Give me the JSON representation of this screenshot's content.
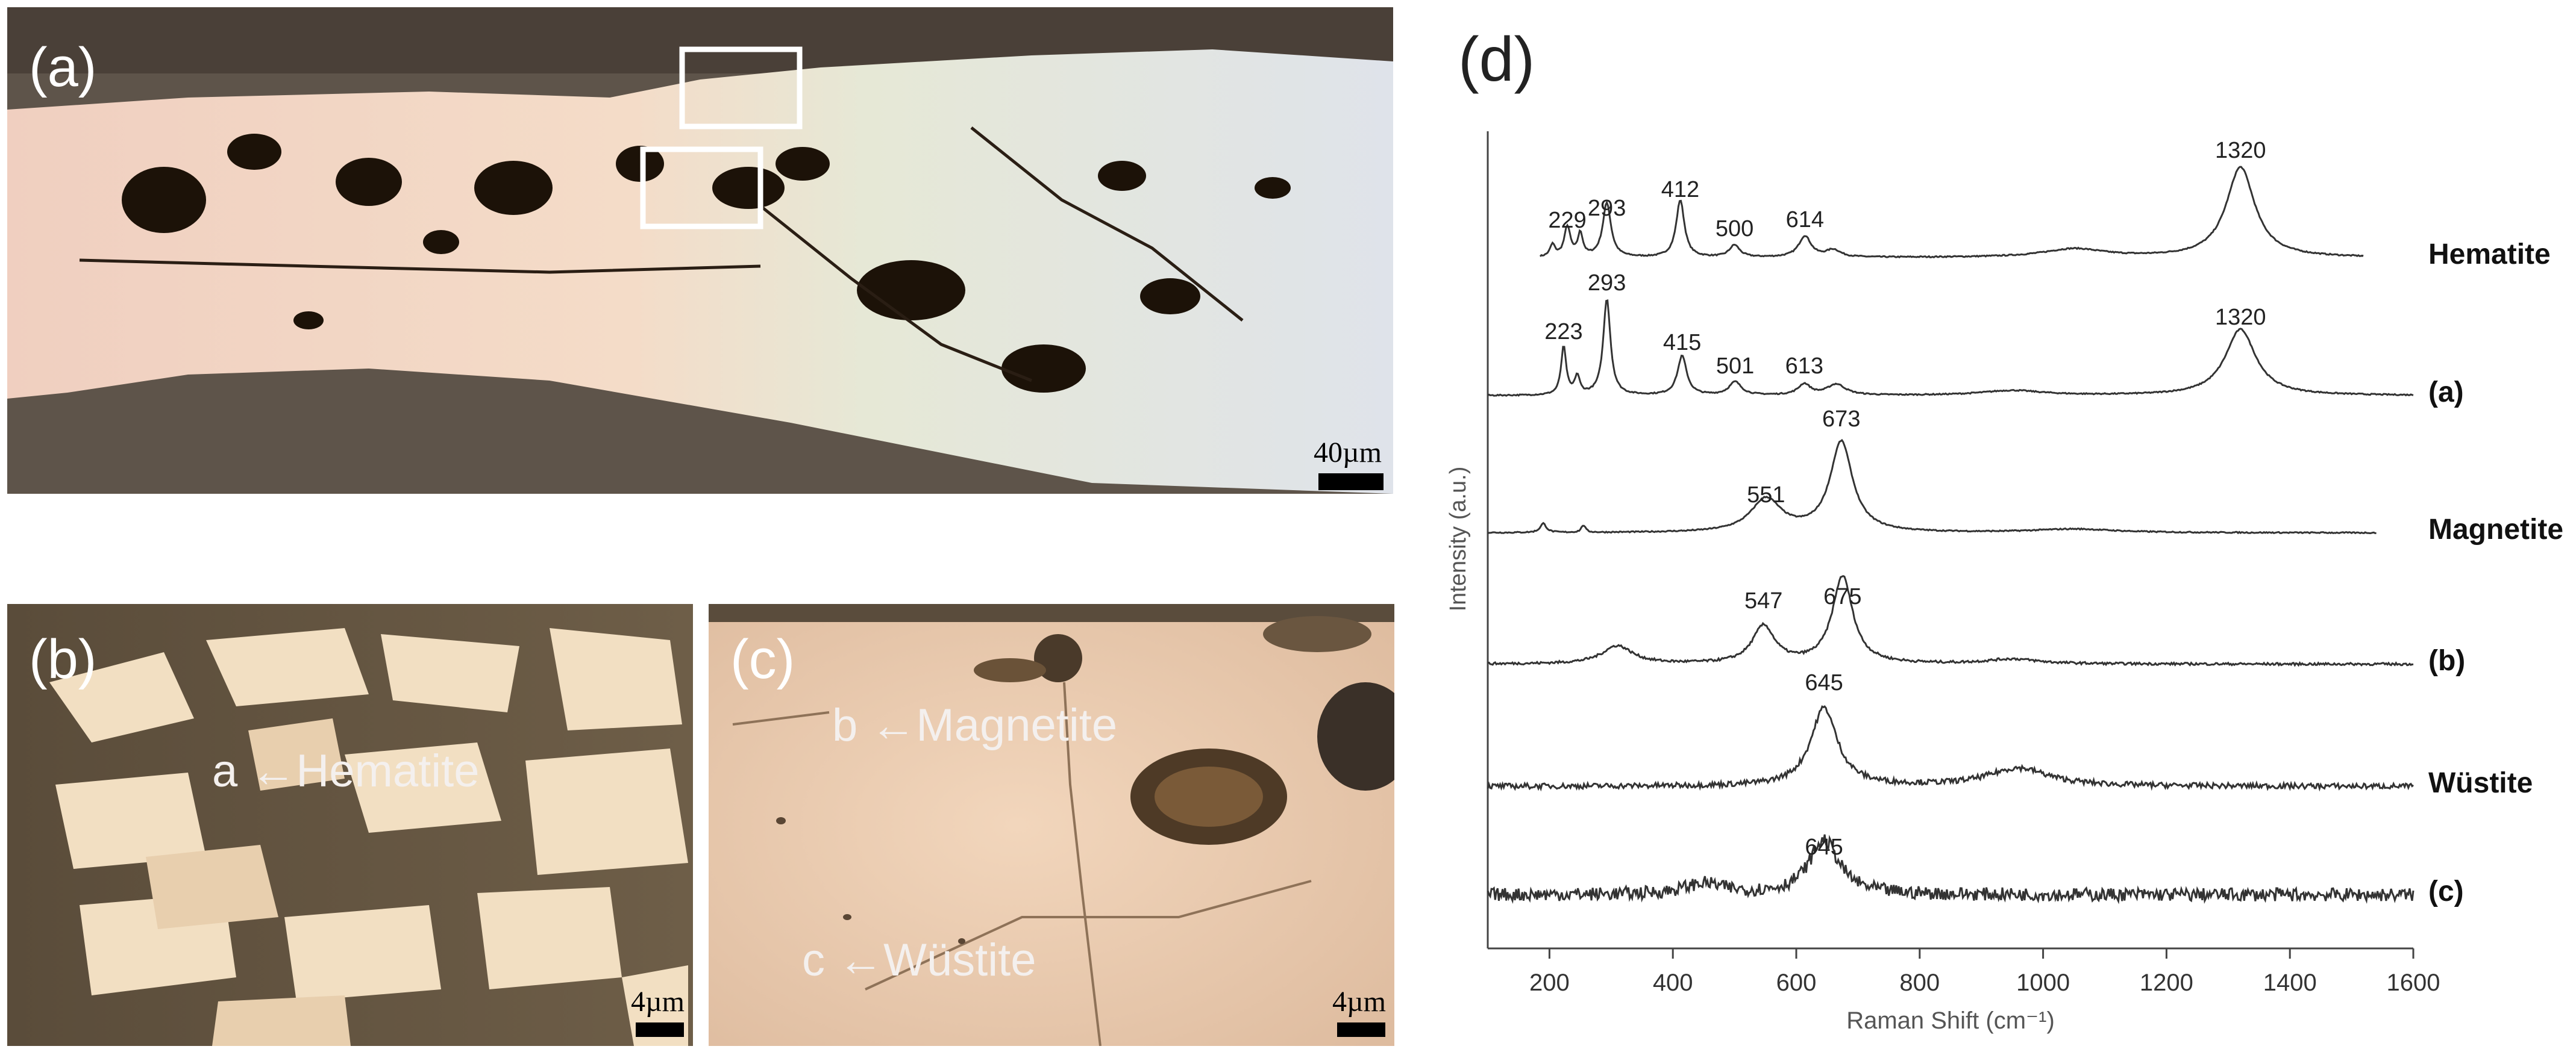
{
  "figure": {
    "panels": {
      "a": {
        "letter": "(a)",
        "scale_label": "40µm"
      },
      "b": {
        "letter": "(b)",
        "scale_label": "4µm",
        "annotation": "a ←Hematite"
      },
      "c": {
        "letter": "(c)",
        "scale_label": "4µm",
        "annotation_top": "b ←Magnetite",
        "annotation_bottom": "c ←Wüstite"
      },
      "d": {
        "letter": "(d)"
      }
    },
    "colors": {
      "background": "#ffffff",
      "spectrum_line": "#333333",
      "photo_matrix": "#6e6358"
    }
  },
  "chart_data": {
    "type": "line",
    "xlabel": "Raman Shift (cm⁻¹)",
    "ylabel": "Intensity (a.u.)",
    "xlim": [
      100,
      1600
    ],
    "xticks": [
      200,
      400,
      600,
      800,
      1000,
      1200,
      1400,
      1600
    ],
    "series": [
      {
        "name": "Hematite",
        "peaks": [
          "229",
          "293",
          "412",
          "500",
          "614",
          "1320"
        ]
      },
      {
        "name": "(a)",
        "peaks": [
          "223",
          "293",
          "415",
          "501",
          "613",
          "1320"
        ]
      },
      {
        "name": "Magnetite",
        "peaks": [
          "551",
          "673"
        ]
      },
      {
        "name": "(b)",
        "peaks": [
          "547",
          "675"
        ]
      },
      {
        "name": "Wüstite",
        "peaks": [
          "645"
        ]
      },
      {
        "name": "(c)",
        "peaks": [
          "645"
        ]
      }
    ]
  }
}
